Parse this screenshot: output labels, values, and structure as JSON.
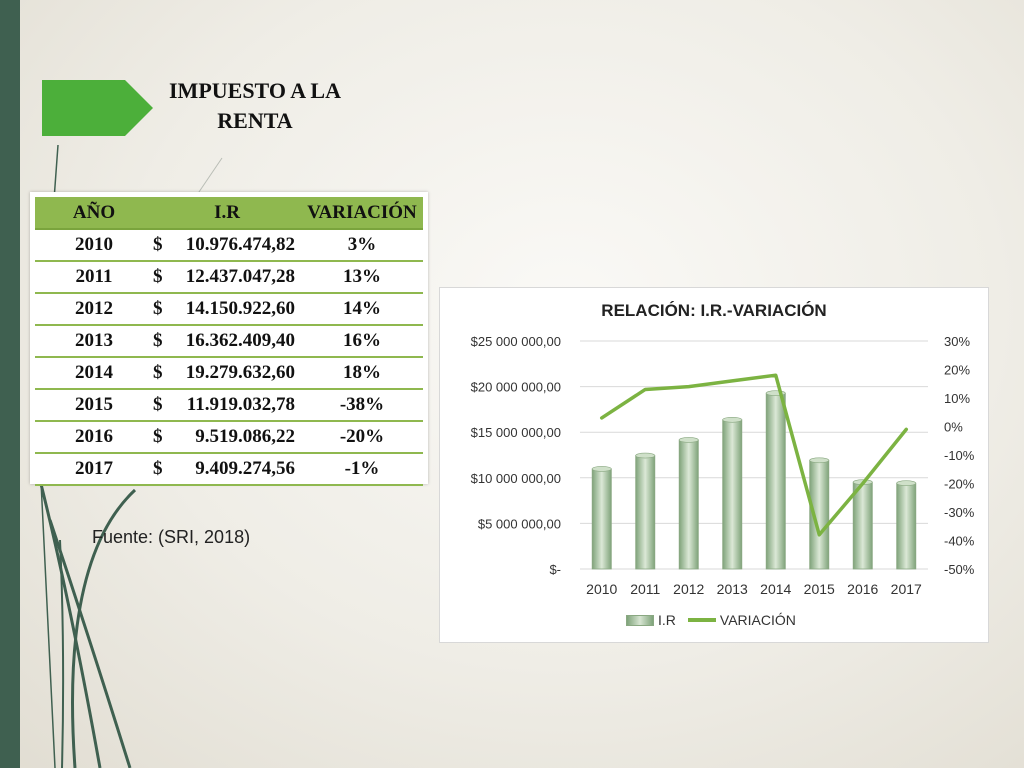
{
  "slide": {
    "title_line1": "IMPUESTO A LA",
    "title_line2": "RENTA",
    "source": "Fuente: (SRI, 2018)"
  },
  "table": {
    "headers": [
      "AÑO",
      "I.R",
      "VARIACIÓN"
    ],
    "currency": "$",
    "rows": [
      {
        "year": "2010",
        "amount": "10.976.474,82",
        "variation": "3%"
      },
      {
        "year": "2011",
        "amount": "12.437.047,28",
        "variation": "13%"
      },
      {
        "year": "2012",
        "amount": "14.150.922,60",
        "variation": "14%"
      },
      {
        "year": "2013",
        "amount": "16.362.409,40",
        "variation": "16%"
      },
      {
        "year": "2014",
        "amount": "19.279.632,60",
        "variation": "18%"
      },
      {
        "year": "2015",
        "amount": "11.919.032,78",
        "variation": "-38%"
      },
      {
        "year": "2016",
        "amount": "9.519.086,22",
        "variation": "-20%"
      },
      {
        "year": "2017",
        "amount": "9.409.274,56",
        "variation": "-1%"
      }
    ]
  },
  "colors": {
    "header_green": "#8fb84f",
    "line_green": "#7cb342",
    "bar_green": "#a9c3a3",
    "left_stripe": "#3f6050",
    "arrow_green": "#4caf3a"
  },
  "chart_data": {
    "type": "bar",
    "title": "RELACIÓN: I.R.-VARIACIÓN",
    "categories": [
      "2010",
      "2011",
      "2012",
      "2013",
      "2014",
      "2015",
      "2016",
      "2017"
    ],
    "series": [
      {
        "name": "I.R",
        "type": "bar",
        "axis": "left",
        "values": [
          10976474.82,
          12437047.28,
          14150922.6,
          16362409.4,
          19279632.6,
          11919032.78,
          9519086.22,
          9409274.56
        ]
      },
      {
        "name": "VARIACIÓN",
        "type": "line",
        "axis": "right",
        "values": [
          3,
          13,
          14,
          16,
          18,
          -38,
          -20,
          -1
        ]
      }
    ],
    "y_left": {
      "min": 0,
      "max": 25000000,
      "step": 5000000,
      "tick_labels": [
        "$-",
        "$5 000 000,00",
        "$10 000 000,00",
        "$15 000 000,00",
        "$20 000 000,00",
        "$25 000 000,00"
      ]
    },
    "y_right": {
      "min": -50,
      "max": 30,
      "step": 10,
      "tick_labels": [
        "-50%",
        "-40%",
        "-30%",
        "-20%",
        "-10%",
        "0%",
        "10%",
        "20%",
        "30%"
      ]
    },
    "grid": true,
    "legend_position": "bottom"
  }
}
